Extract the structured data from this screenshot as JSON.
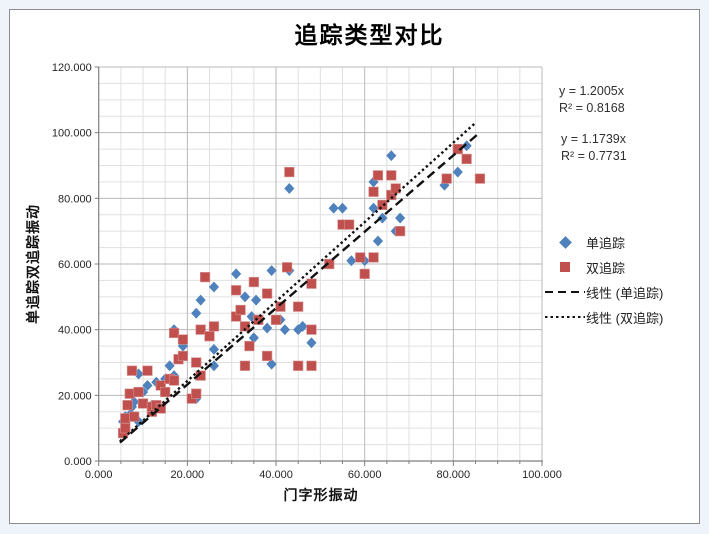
{
  "chart": {
    "title": "追踪类型对比",
    "x_axis": {
      "title": "门字形振动",
      "tick_labels": [
        "0.000",
        "20.000",
        "40.000",
        "60.000",
        "80.000",
        "100.000"
      ],
      "min": 0,
      "max": 100,
      "major_step": 20,
      "minor_step": 5
    },
    "y_axis": {
      "title": "单追踪双追踪振动",
      "tick_labels": [
        "0.000",
        "20.000",
        "40.000",
        "60.000",
        "80.000",
        "100.000",
        "120.000"
      ],
      "min": 0,
      "max": 120,
      "major_step": 20,
      "minor_step": 5
    },
    "annotations": {
      "eq1_line1": "y = 1.2005x",
      "eq1_line2": "R² = 0.8168",
      "eq2_line1": "y = 1.1739x",
      "eq2_line2": "R² = 0.7731"
    },
    "legend": {
      "item1": "单追踪",
      "item2": "双追踪",
      "item3": "线性 (单追踪)",
      "item4": "线性 (双追踪)"
    },
    "colors": {
      "series1": "#4f81bd",
      "series2": "#c0504d",
      "trendline": "#111111",
      "grid_major": "#b9b9b9",
      "grid_minor": "#e0e0e0",
      "axis": "#7f7f7f",
      "background": "#ffffff",
      "page_background": "#eff3fa"
    }
  },
  "chart_data": {
    "type": "scatter",
    "title": "追踪类型对比",
    "xlabel": "门字形振动",
    "ylabel": "单追踪双追踪振动",
    "xlim": [
      0,
      100
    ],
    "ylim": [
      0,
      120
    ],
    "grid": true,
    "legend_position": "right",
    "series": [
      {
        "name": "单追踪",
        "marker": "diamond",
        "color": "#4f81bd",
        "points": [
          [
            5.5,
            12
          ],
          [
            6,
            13.5
          ],
          [
            7,
            14
          ],
          [
            7.5,
            16.5
          ],
          [
            8,
            18
          ],
          [
            9,
            12
          ],
          [
            9,
            26.5
          ],
          [
            10,
            21
          ],
          [
            11,
            23
          ],
          [
            12,
            17
          ],
          [
            13,
            24
          ],
          [
            15,
            25
          ],
          [
            16,
            29
          ],
          [
            17,
            26
          ],
          [
            17,
            40
          ],
          [
            19,
            35
          ],
          [
            22,
            19
          ],
          [
            22,
            45
          ],
          [
            23,
            49
          ],
          [
            26,
            29
          ],
          [
            26,
            34
          ],
          [
            26,
            53
          ],
          [
            31,
            57
          ],
          [
            33,
            50
          ],
          [
            34.5,
            44
          ],
          [
            35,
            37.5
          ],
          [
            35.5,
            49
          ],
          [
            38,
            40.5
          ],
          [
            39,
            29.5
          ],
          [
            39,
            58
          ],
          [
            41,
            43
          ],
          [
            42,
            40
          ],
          [
            43,
            58
          ],
          [
            43,
            83
          ],
          [
            45,
            40
          ],
          [
            46,
            41
          ],
          [
            48,
            36
          ],
          [
            53,
            77
          ],
          [
            55,
            77
          ],
          [
            57,
            61
          ],
          [
            60,
            61
          ],
          [
            62,
            77
          ],
          [
            62,
            85
          ],
          [
            63,
            67
          ],
          [
            64,
            74
          ],
          [
            66,
            93
          ],
          [
            67,
            70
          ],
          [
            68,
            74
          ],
          [
            78,
            84
          ],
          [
            81,
            88
          ],
          [
            83,
            96
          ]
        ]
      },
      {
        "name": "双追踪",
        "marker": "square",
        "color": "#c0504d",
        "points": [
          [
            5.5,
            8.5
          ],
          [
            6,
            10
          ],
          [
            6,
            13
          ],
          [
            6.5,
            17
          ],
          [
            7,
            20.5
          ],
          [
            7.5,
            27.5
          ],
          [
            8,
            13.5
          ],
          [
            9,
            21
          ],
          [
            10,
            17.5
          ],
          [
            11,
            27.5
          ],
          [
            12,
            15
          ],
          [
            12,
            16.5
          ],
          [
            13,
            17
          ],
          [
            14,
            16
          ],
          [
            14,
            23
          ],
          [
            15,
            21
          ],
          [
            16,
            25
          ],
          [
            17,
            24.5
          ],
          [
            17,
            39
          ],
          [
            18,
            31
          ],
          [
            19,
            32
          ],
          [
            19,
            37
          ],
          [
            21,
            19
          ],
          [
            22,
            20.5
          ],
          [
            22,
            30
          ],
          [
            23,
            26
          ],
          [
            23,
            40
          ],
          [
            24,
            56
          ],
          [
            25,
            38
          ],
          [
            26,
            41
          ],
          [
            31,
            44
          ],
          [
            31,
            52
          ],
          [
            32,
            46
          ],
          [
            33,
            29
          ],
          [
            33,
            41
          ],
          [
            34,
            35
          ],
          [
            35,
            54.5
          ],
          [
            36,
            43
          ],
          [
            38,
            32
          ],
          [
            38,
            51
          ],
          [
            40,
            43
          ],
          [
            41,
            47
          ],
          [
            42.5,
            59
          ],
          [
            43,
            88
          ],
          [
            45,
            29
          ],
          [
            45,
            47
          ],
          [
            48,
            29
          ],
          [
            48,
            40
          ],
          [
            48,
            54
          ],
          [
            52,
            60
          ],
          [
            55,
            72
          ],
          [
            56.5,
            72
          ],
          [
            59,
            62
          ],
          [
            60,
            57
          ],
          [
            62,
            62
          ],
          [
            62,
            82
          ],
          [
            63,
            87
          ],
          [
            64,
            78
          ],
          [
            66,
            81
          ],
          [
            66,
            87
          ],
          [
            67,
            83
          ],
          [
            68,
            70
          ],
          [
            78.5,
            86
          ],
          [
            81,
            95
          ],
          [
            83,
            92
          ],
          [
            86,
            86
          ]
        ]
      }
    ],
    "trendlines": [
      {
        "name": "线性 (单追踪)",
        "style": "dashed",
        "equation": "y = 1.2005x",
        "r2": 0.8168,
        "x1": 4.8,
        "y1": 5.6,
        "x2": 85.5,
        "y2": 99.5
      },
      {
        "name": "线性 (双追踪)",
        "style": "dotted",
        "equation": "y = 1.1739x",
        "r2": 0.7731,
        "x1": 4.8,
        "y1": 6.0,
        "x2": 85.0,
        "y2": 103.0
      }
    ]
  }
}
